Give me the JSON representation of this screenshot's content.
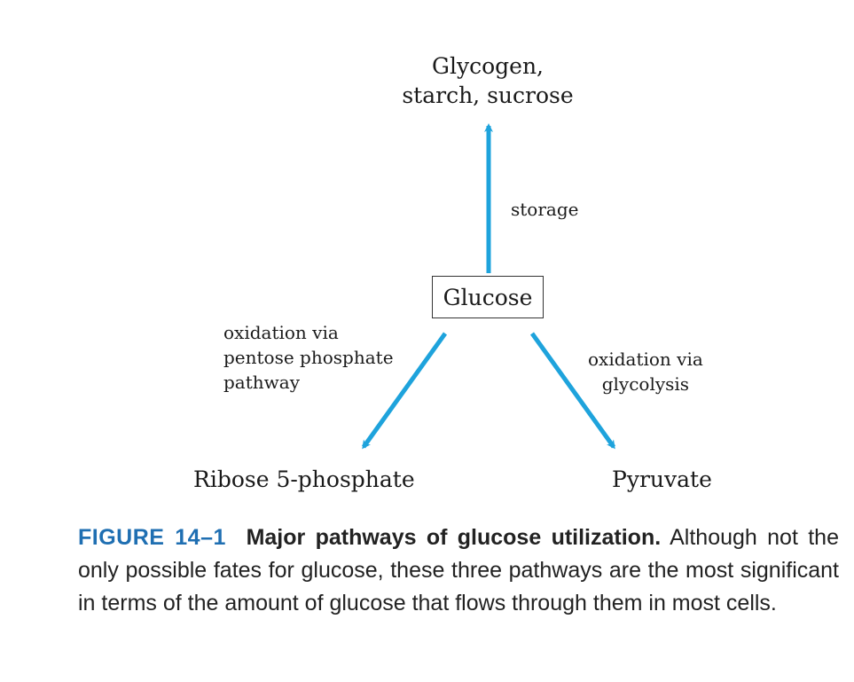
{
  "diagram": {
    "nodes": {
      "top_line1": "Glycogen,",
      "top_line2": "starch, sucrose",
      "center": "Glucose",
      "left": "Ribose 5-phosphate",
      "right": "Pyruvate"
    },
    "edges": {
      "storage": "storage",
      "left_line1": "oxidation via",
      "left_line2": "pentose phosphate",
      "left_line3": "pathway",
      "right_line1": "oxidation via",
      "right_line2": "glycolysis"
    },
    "arrow_color": "#1ea3dc"
  },
  "caption": {
    "figure_number": "FIGURE 14–1",
    "title": "Major pathways of glucose utilization.",
    "text": "Although not the only possible fates for glucose, these three pathways are the most significant in terms of the amount of glucose that flows through them in most cells."
  }
}
